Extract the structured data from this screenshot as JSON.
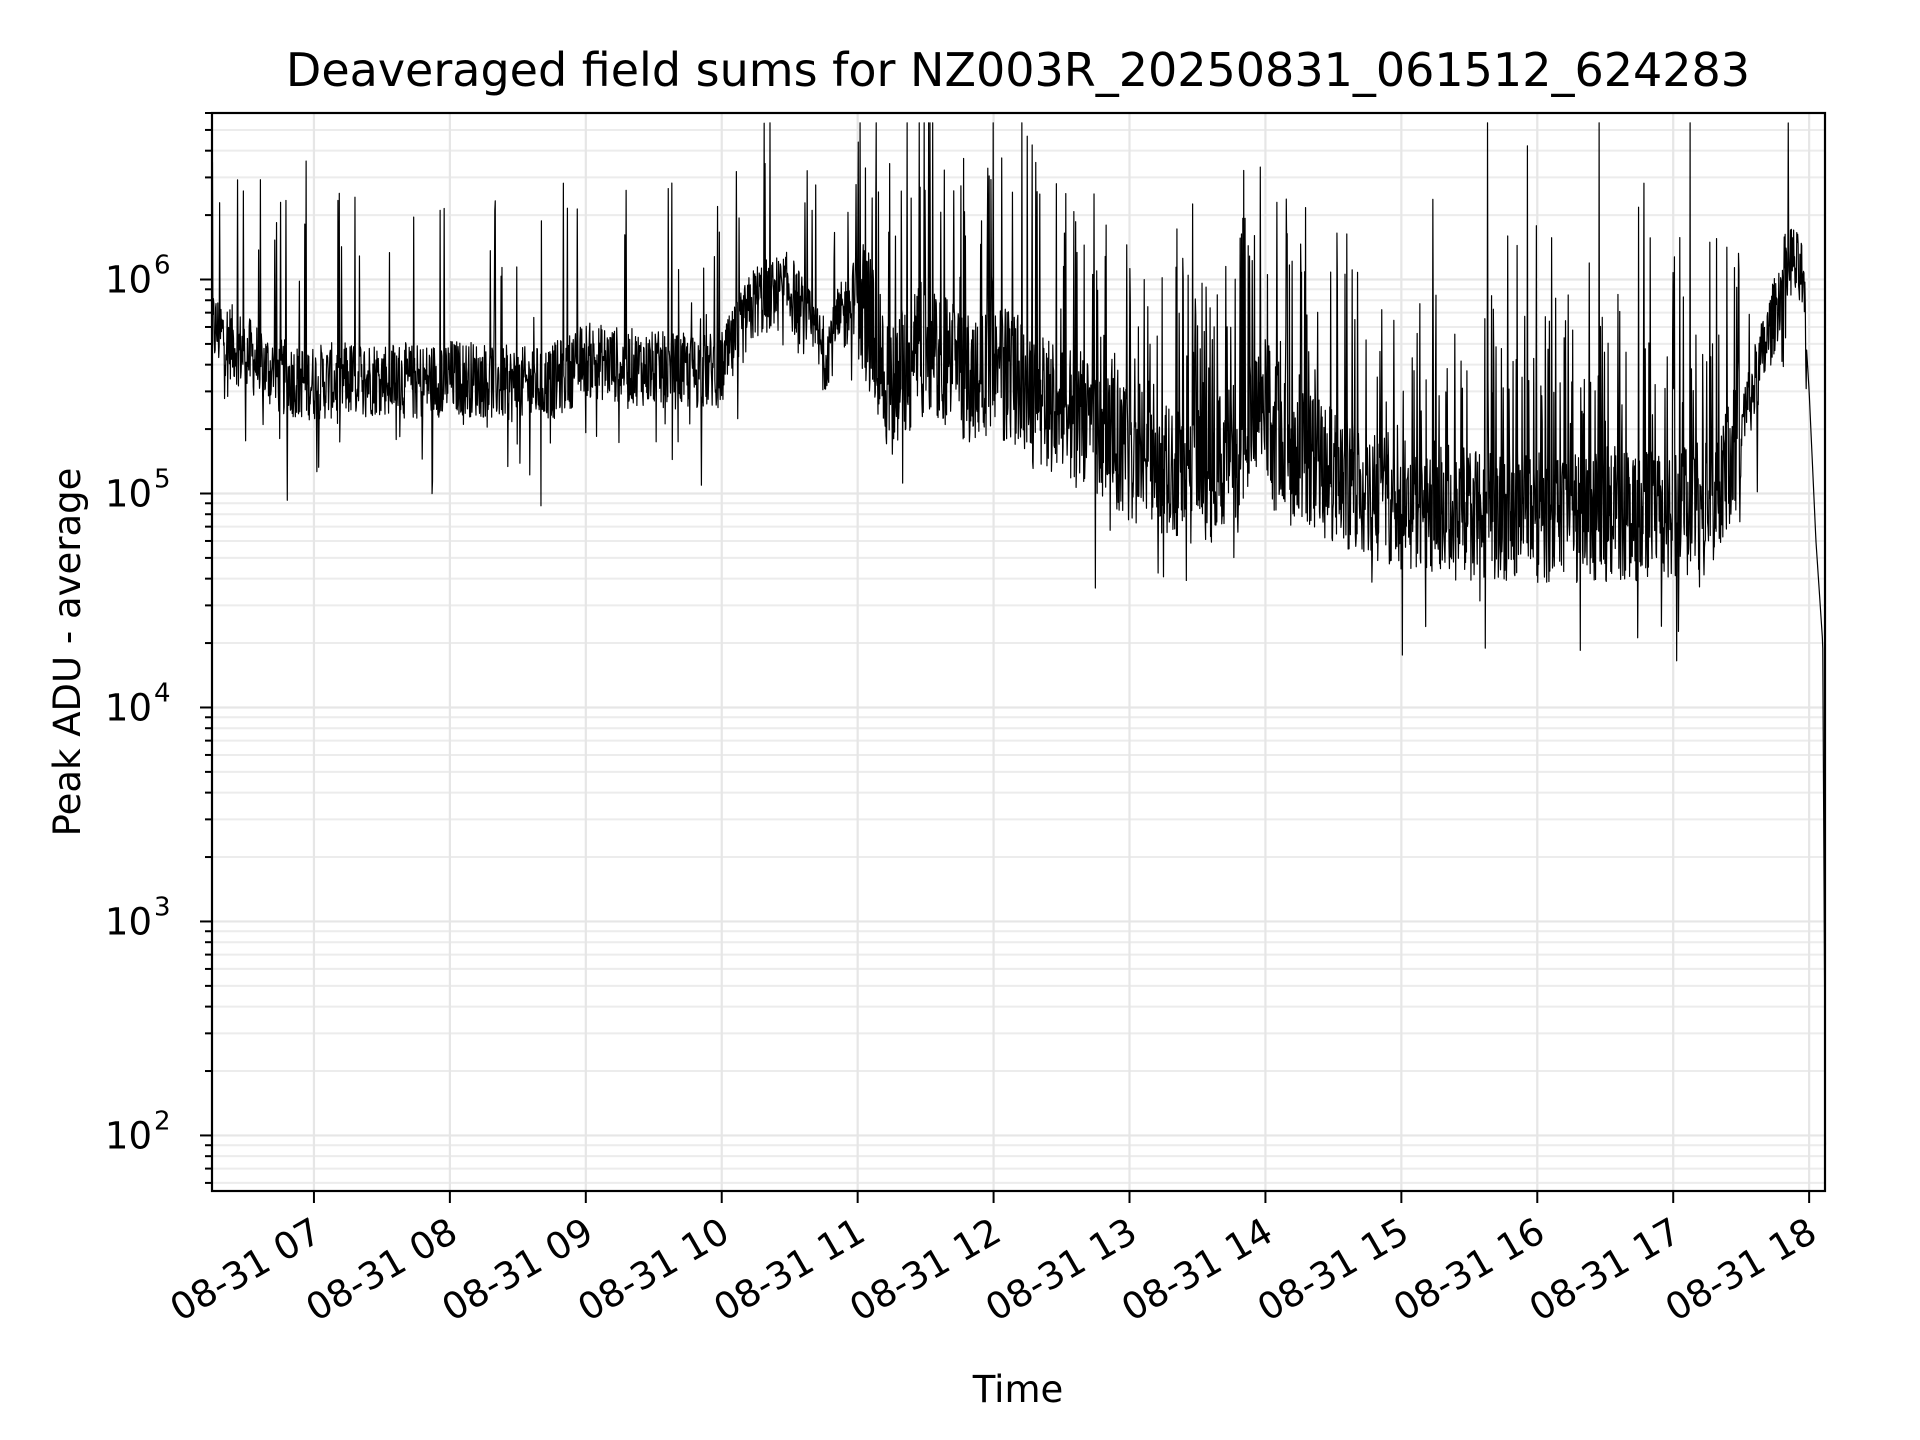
{
  "chart_data": {
    "type": "line",
    "title": "Deaveraged field sums for NZ003R_20250831_061512_624283",
    "xlabel": "Time",
    "ylabel": "Peak ADU - average",
    "yscale": "log",
    "xlim": [
      "2025-08-31 06:15",
      "2025-08-31 18:07"
    ],
    "ylim": [
      55,
      6000000
    ],
    "grid": true,
    "line_color": "#000000",
    "x_ticks": [
      "08-31 07",
      "08-31 08",
      "08-31 09",
      "08-31 10",
      "08-31 11",
      "08-31 12",
      "08-31 13",
      "08-31 14",
      "08-31 15",
      "08-31 16",
      "08-31 17",
      "08-31 18"
    ],
    "x_tick_hours": [
      7,
      8,
      9,
      10,
      11,
      12,
      13,
      14,
      15,
      16,
      17,
      18
    ],
    "y_ticks": [
      {
        "value": 100,
        "base": "10",
        "exp": "2"
      },
      {
        "value": 1000,
        "base": "10",
        "exp": "3"
      },
      {
        "value": 10000,
        "base": "10",
        "exp": "4"
      },
      {
        "value": 100000,
        "base": "10",
        "exp": "5"
      },
      {
        "value": 1000000,
        "base": "10",
        "exp": "6"
      }
    ],
    "series": [
      {
        "x_hours": [
          6.25,
          6.5,
          6.75,
          7.0,
          7.25,
          7.5,
          7.75,
          8.0,
          8.25,
          8.5,
          8.75,
          9.0,
          9.25,
          9.5,
          9.75,
          10.0,
          10.25,
          10.5,
          10.75,
          11.0,
          11.25,
          11.5,
          11.75,
          12.0,
          12.25,
          12.5,
          12.75,
          13.0,
          13.25,
          13.5,
          13.75,
          14.0,
          14.25,
          14.5,
          14.75,
          15.0,
          15.25,
          15.5,
          15.75,
          16.0,
          16.25,
          16.5,
          16.75,
          17.0,
          17.25,
          17.5,
          17.75,
          17.85,
          17.95,
          18.0,
          18.05,
          18.1,
          18.12
        ],
        "values": [
          600000,
          450000,
          350000,
          330000,
          340000,
          350000,
          330000,
          350000,
          340000,
          320000,
          330000,
          420000,
          400000,
          380000,
          370000,
          380000,
          800000,
          900000,
          450000,
          900000,
          300000,
          500000,
          350000,
          400000,
          300000,
          250000,
          200000,
          150000,
          130000,
          120000,
          150000,
          250000,
          150000,
          120000,
          100000,
          90000,
          85000,
          80000,
          80000,
          80000,
          80000,
          80000,
          80000,
          80000,
          85000,
          200000,
          700000,
          1300000,
          1000000,
          300000,
          60000,
          20000,
          90
        ]
      }
    ]
  }
}
